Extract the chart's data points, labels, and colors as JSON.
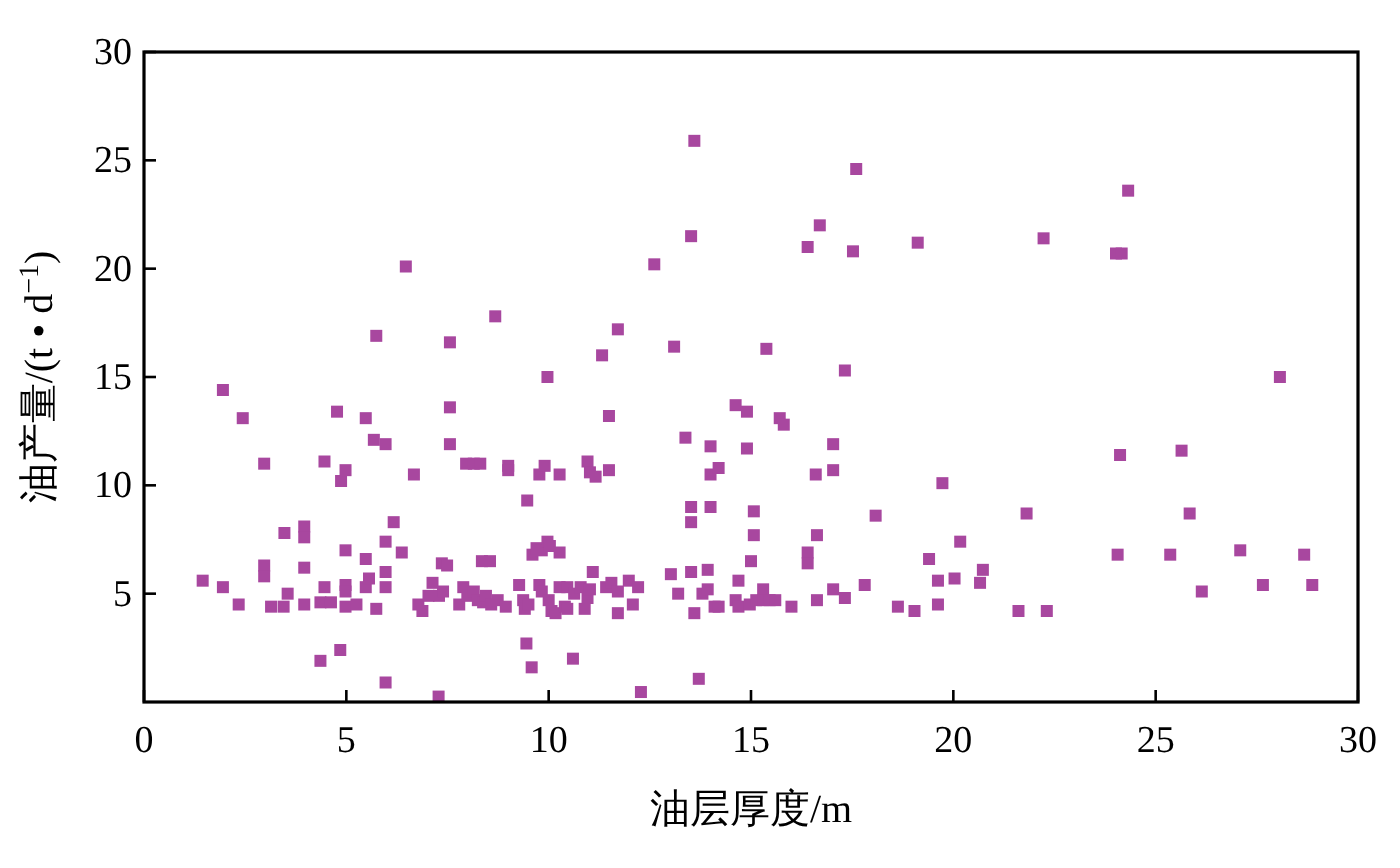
{
  "chart_data": {
    "type": "scatter",
    "xlabel": "油层厚度/m",
    "ylabel": "油产量/(t • d$^{−1}$)",
    "xlim": [
      0,
      30
    ],
    "ylim": [
      0,
      30
    ],
    "xticks": [
      0,
      5,
      10,
      15,
      20,
      25,
      30
    ],
    "yticks": [
      5,
      10,
      15,
      20,
      25,
      30
    ],
    "grid": false,
    "marker": "square",
    "series": [
      {
        "color": "#a8479f",
        "x": [
          1.45,
          1.95,
          1.95,
          2.44,
          2.34,
          2.97,
          2.97,
          2.97,
          3.14,
          3.45,
          3.55,
          3.47,
          3.96,
          3.96,
          3.96,
          3.96,
          4.36,
          4.46,
          4.46,
          4.36,
          4.62,
          4.77,
          4.85,
          4.87,
          4.98,
          4.98,
          4.98,
          4.98,
          4.98,
          5.25,
          5.48,
          5.48,
          5.48,
          5.56,
          5.68,
          5.97,
          5.74,
          5.74,
          5.97,
          5.97,
          5.97,
          5.97,
          6.17,
          6.37,
          6.47,
          6.67,
          6.78,
          6.88,
          7.03,
          7.13,
          7.28,
          7.29,
          7.39,
          7.36,
          7.49,
          7.56,
          7.56,
          7.56,
          7.79,
          7.89,
          7.99,
          8.15,
          8.25,
          8.38,
          8.45,
          7.96,
          8.15,
          8.31,
          8.35,
          8.55,
          8.68,
          8.58,
          8.74,
          8.94,
          9.0,
          9.0,
          9.27,
          9.37,
          9.41,
          9.5,
          9.47,
          9.45,
          9.58,
          9.6,
          9.7,
          9.83,
          9.97,
          10.03,
          10.27,
          9.77,
          9.9,
          9.97,
          9.77,
          9.83,
          10.0,
          10.07,
          10.17,
          10.27,
          10.4,
          10.27,
          10.6,
          10.46,
          10.46,
          10.63,
          10.79,
          10.89,
          10.96,
          11.02,
          10.96,
          11.02,
          11.16,
          11.49,
          11.09,
          11.32,
          11.49,
          11.42,
          11.55,
          11.71,
          11.71,
          11.71,
          11.98,
          12.08,
          12.21,
          12.28,
          12.61,
          13.02,
          13.2,
          13.1,
          13.52,
          13.38,
          13.52,
          13.52,
          13.52,
          13.6,
          13.71,
          13.8,
          13.93,
          13.93,
          14.0,
          14.0,
          14.2,
          14.0,
          14.1,
          14.2,
          14.62,
          14.62,
          14.69,
          14.69,
          14.9,
          14.9,
          15.0,
          15.07,
          15.07,
          14.97,
          15.13,
          15.3,
          15.3,
          15.46,
          15.6,
          15.38,
          15.71,
          15.81,
          16.0,
          16.4,
          16.7,
          16.4,
          16.4,
          16.6,
          16.63,
          16.63,
          17.03,
          17.03,
          17.03,
          17.32,
          17.32,
          17.52,
          17.81,
          18.08,
          18.63,
          19.04,
          19.12,
          19.4,
          19.62,
          19.62,
          19.73,
          20.03,
          20.17,
          13.6,
          17.6,
          24.32,
          22.23,
          24.02,
          24.16,
          28.07,
          24.12,
          25.64,
          21.81,
          25.84,
          20.73,
          20.66,
          21.61,
          22.31,
          24.06,
          25.36,
          27.09,
          28.67,
          26.14,
          27.65,
          28.87
        ],
        "values": [
          5.6,
          14.4,
          5.3,
          13.1,
          4.5,
          11.0,
          6.3,
          5.8,
          4.4,
          4.4,
          5.0,
          7.8,
          8.1,
          7.6,
          6.2,
          4.5,
          1.9,
          11.1,
          5.3,
          4.6,
          4.6,
          13.4,
          2.4,
          10.2,
          10.7,
          7.0,
          5.4,
          5.1,
          4.4,
          4.5,
          13.1,
          6.6,
          5.3,
          5.7,
          12.1,
          11.9,
          16.9,
          4.3,
          7.4,
          6.0,
          5.3,
          0.9,
          8.3,
          6.9,
          20.1,
          10.5,
          4.5,
          4.2,
          4.9,
          5.5,
          0.25,
          4.9,
          5.1,
          6.4,
          6.3,
          16.6,
          13.6,
          11.9,
          4.5,
          5.3,
          4.9,
          5.1,
          4.7,
          4.6,
          4.9,
          11.0,
          11.0,
          11.0,
          6.5,
          6.5,
          17.8,
          4.5,
          4.7,
          4.4,
          10.9,
          10.7,
          5.4,
          4.7,
          4.3,
          4.5,
          9.3,
          2.7,
          1.6,
          6.8,
          7.1,
          7.0,
          7.4,
          7.2,
          6.9,
          10.5,
          10.9,
          15.0,
          5.4,
          5.1,
          4.7,
          4.2,
          4.1,
          5.3,
          4.4,
          10.5,
          2.0,
          5.3,
          4.3,
          5.0,
          5.3,
          4.3,
          4.8,
          5.2,
          11.1,
          10.6,
          10.4,
          10.7,
          6.0,
          16.0,
          13.2,
          5.3,
          5.5,
          17.2,
          5.1,
          4.1,
          5.6,
          4.5,
          5.3,
          0.46,
          20.2,
          5.9,
          5.0,
          16.4,
          21.5,
          12.2,
          9.0,
          8.3,
          6.0,
          4.1,
          1.07,
          5.0,
          5.2,
          6.1,
          11.8,
          10.5,
          10.8,
          9.0,
          4.4,
          4.4,
          13.7,
          4.7,
          4.4,
          5.6,
          13.4,
          11.7,
          6.5,
          8.8,
          7.7,
          4.5,
          4.7,
          5.2,
          4.7,
          4.7,
          4.7,
          16.3,
          13.1,
          12.8,
          4.4,
          21.0,
          22.0,
          6.9,
          6.4,
          10.5,
          7.7,
          4.7,
          11.9,
          10.7,
          5.2,
          4.8,
          15.3,
          20.8,
          5.4,
          8.6,
          4.4,
          4.2,
          21.2,
          6.6,
          5.6,
          4.5,
          10.1,
          5.7,
          7.4,
          25.9,
          24.6,
          23.6,
          21.4,
          20.7,
          20.7,
          15.0,
          11.4,
          11.6,
          8.7,
          8.7,
          6.1,
          5.5,
          4.2,
          4.2,
          6.8,
          6.8,
          7.0,
          6.8,
          5.1,
          5.4,
          5.4
        ]
      }
    ]
  }
}
